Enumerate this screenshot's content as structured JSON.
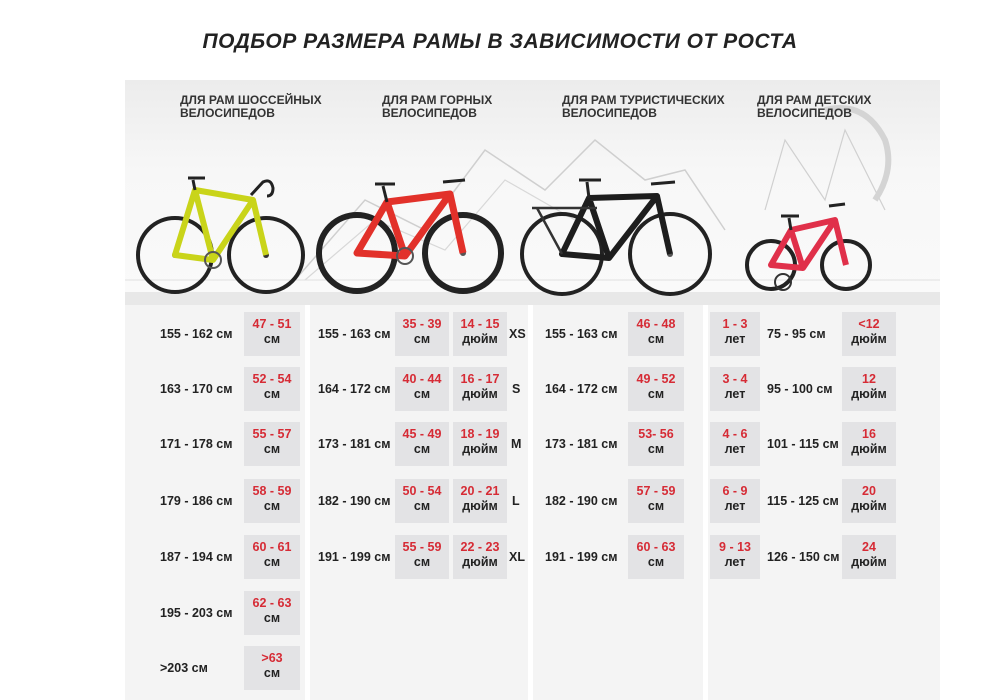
{
  "title": "ПОДБОР РАЗМЕРА РАМЫ В ЗАВИСИМОСТИ ОТ РОСТА",
  "colors": {
    "accent_red": "#d62b35",
    "box_gray": "#e3e3e5",
    "band_gray": "#f4f4f4"
  },
  "categories": {
    "road": {
      "label_1": "ДЛЯ РАМ ШОССЕЙНЫХ",
      "label_2": "ВЕЛОСИПЕДОВ",
      "icon": "road-bike-icon"
    },
    "mountain": {
      "label_1": "ДЛЯ РАМ ГОРНЫХ",
      "label_2": "ВЕЛОСИПЕДОВ",
      "icon": "mountain-bike-icon"
    },
    "touring": {
      "label_1": "ДЛЯ РАМ ТУРИСТИЧЕСКИХ",
      "label_2": "ВЕЛОСИПЕДОВ",
      "icon": "touring-bike-icon"
    },
    "kids": {
      "label_1": "ДЛЯ РАМ ДЕТСКИХ",
      "label_2": "ВЕЛОСИПЕДОВ",
      "icon": "kids-bike-icon"
    }
  },
  "road": [
    {
      "height": "155 - 162 см",
      "frame": "47 - 51",
      "unit": "см"
    },
    {
      "height": "163 - 170 см",
      "frame": "52 - 54",
      "unit": "см"
    },
    {
      "height": "171 - 178 см",
      "frame": "55 - 57",
      "unit": "см"
    },
    {
      "height": "179 - 186 см",
      "frame": "58 - 59",
      "unit": "см"
    },
    {
      "height": "187 - 194 см",
      "frame": "60 - 61",
      "unit": "см"
    },
    {
      "height": "195 - 203 см",
      "frame": "62 - 63",
      "unit": "см"
    },
    {
      "height": ">203 см",
      "frame": ">63",
      "unit": "см"
    }
  ],
  "mountain": [
    {
      "height": "155 - 163 см",
      "cm": "35 - 39",
      "cm_unit": "см",
      "inch": "14 - 15",
      "inch_unit": "дюйм",
      "size": "XS"
    },
    {
      "height": "164 - 172 см",
      "cm": "40 - 44",
      "cm_unit": "см",
      "inch": "16 - 17",
      "inch_unit": "дюйм",
      "size": "S"
    },
    {
      "height": "173 - 181 см",
      "cm": "45 - 49",
      "cm_unit": "см",
      "inch": "18 - 19",
      "inch_unit": "дюйм",
      "size": "M"
    },
    {
      "height": "182 - 190 см",
      "cm": "50 - 54",
      "cm_unit": "см",
      "inch": "20 - 21",
      "inch_unit": "дюйм",
      "size": "L"
    },
    {
      "height": "191 - 199 см",
      "cm": "55 - 59",
      "cm_unit": "см",
      "inch": "22 - 23",
      "inch_unit": "дюйм",
      "size": "XL"
    }
  ],
  "touring": [
    {
      "height": "155 - 163 см",
      "frame": "46 - 48",
      "unit": "см"
    },
    {
      "height": "164 - 172 см",
      "frame": "49 - 52",
      "unit": "см"
    },
    {
      "height": "173 - 181 см",
      "frame": "53- 56",
      "unit": "см"
    },
    {
      "height": "182 - 190 см",
      "frame": "57 - 59",
      "unit": "см"
    },
    {
      "height": "191 - 199 см",
      "frame": "60 - 63",
      "unit": "см"
    }
  ],
  "kids": [
    {
      "age": "1 - 3",
      "age_unit": "лет",
      "height": "75 - 95 см",
      "wheel": "<12",
      "wheel_unit": "дюйм"
    },
    {
      "age": "3 - 4",
      "age_unit": "лет",
      "height": "95 - 100 см",
      "wheel": "12",
      "wheel_unit": "дюйм"
    },
    {
      "age": "4 - 6",
      "age_unit": "лет",
      "height": "101 - 115 см",
      "wheel": "16",
      "wheel_unit": "дюйм"
    },
    {
      "age": "6 - 9",
      "age_unit": "лет",
      "height": "115 - 125 см",
      "wheel": "20",
      "wheel_unit": "дюйм"
    },
    {
      "age": "9 - 13",
      "age_unit": "лет",
      "height": "126 - 150 см",
      "wheel": "24",
      "wheel_unit": "дюйм"
    }
  ]
}
